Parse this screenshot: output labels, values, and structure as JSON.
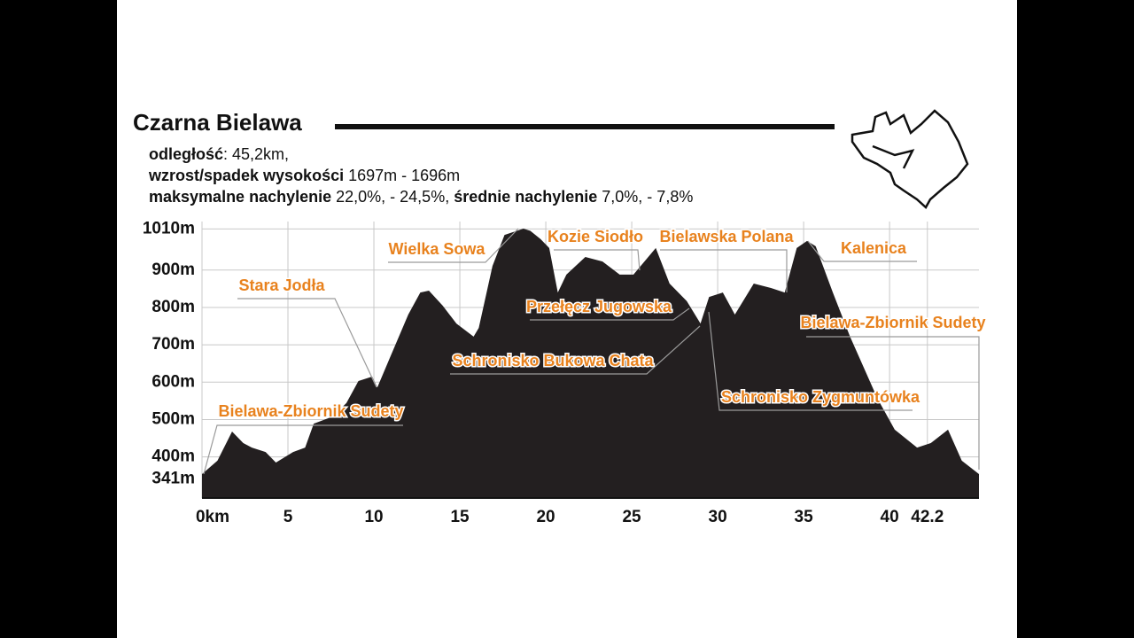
{
  "chart_data": {
    "type": "area",
    "title": "Czarna Bielawa",
    "stats": [
      [
        "odległość",
        ": 45,2km,"
      ],
      [
        "wzrost/spadek wysokości",
        " 1697m - 1696m"
      ],
      [
        "maksymalne nachylenie",
        " 22,0%, - 24,5%, ",
        "średnie nachylenie",
        " 7,0%, - 7,8%"
      ]
    ],
    "x": [
      0,
      0.9,
      1.75,
      2.4,
      2.9,
      3.7,
      4.3,
      5.3,
      6.0,
      6.5,
      7.6,
      8.4,
      9.1,
      9.9,
      10.2,
      10.9,
      12.0,
      12.7,
      13.2,
      14.0,
      14.8,
      15.8,
      16.1,
      16.9,
      17.6,
      18.7,
      19.1,
      19.7,
      20.2,
      20.7,
      21.2,
      22.3,
      23.3,
      24.3,
      25.1,
      26.4,
      27.2,
      28.2,
      29.0,
      29.5,
      30.3,
      31.0,
      32.1,
      33.1,
      33.9,
      34.6,
      35.2,
      35.7,
      36.7,
      37.7,
      39.3,
      40.3,
      41.6,
      42.4,
      43.4,
      44.2,
      45.2
    ],
    "values": [
      354,
      390,
      468,
      437,
      425,
      413,
      385,
      413,
      425,
      489,
      508,
      544,
      603,
      615,
      586,
      662,
      781,
      840,
      845,
      805,
      757,
      722,
      745,
      911,
      994,
      1011,
      1005,
      983,
      959,
      840,
      888,
      935,
      923,
      888,
      888,
      959,
      864,
      817,
      757,
      828,
      840,
      781,
      864,
      852,
      840,
      959,
      978,
      964,
      840,
      722,
      556,
      473,
      425,
      437,
      473,
      390,
      354
    ],
    "color": "#231f20",
    "xlim": [
      0,
      45.2
    ],
    "ylim": [
      290,
      1030
    ],
    "xticks": [
      {
        "value": 0,
        "label": "0km"
      },
      5,
      10,
      15,
      20,
      25,
      30,
      35,
      40,
      42.2
    ],
    "yticks": [
      {
        "value": 341,
        "label": "341m"
      },
      {
        "value": 400,
        "label": "400m"
      },
      {
        "value": 500,
        "label": "500m"
      },
      {
        "value": 600,
        "label": "600m"
      },
      {
        "value": 700,
        "label": "700m"
      },
      {
        "value": 800,
        "label": "800m"
      },
      {
        "value": 900,
        "label": "900m"
      },
      {
        "value": 1010,
        "label": "1010m"
      }
    ],
    "grid": true,
    "annotations": [
      "Stara Jodła",
      "Wielka Sowa",
      "Kozie Siodło",
      "Bielawska Polana",
      "Kalenica",
      "Przełęcz Jugowska",
      "Schronisko Bukowa Chata",
      "Schronisko Zygmuntówka",
      "Bielawa-Zbiornik Sudety",
      "Bielawa-Zbiornik Sudety"
    ],
    "annotation_color": "#e8821e"
  }
}
